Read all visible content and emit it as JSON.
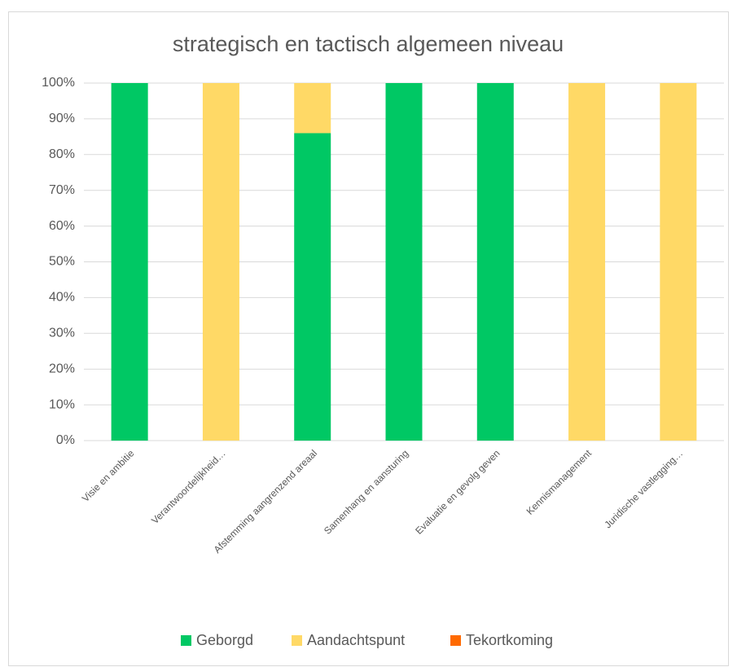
{
  "chart_data": {
    "type": "stacked_bar",
    "title": "strategisch en tactisch algemeen niveau",
    "categories": [
      "Visie en ambitie",
      "Verantwoordelijkheid…",
      "Afstemming aangrenzend areaal",
      "Samenhang en aansturing",
      "Evaluatie en gevolg geven",
      "Kennismanagement",
      "Juridische vastlegging…"
    ],
    "series": [
      {
        "name": "Geborgd",
        "color": "#00C864",
        "values": [
          100,
          0,
          86,
          100,
          100,
          0,
          0
        ]
      },
      {
        "name": "Aandachtspunt",
        "color": "#FFD966",
        "values": [
          0,
          100,
          14,
          0,
          0,
          100,
          100
        ]
      },
      {
        "name": "Tekortkoming",
        "color": "#FF6A00",
        "values": [
          0,
          0,
          0,
          0,
          0,
          0,
          0
        ]
      }
    ],
    "ylim": [
      0,
      100
    ],
    "yticks": [
      {
        "value": 0,
        "label": "0%"
      },
      {
        "value": 10,
        "label": "10%"
      },
      {
        "value": 20,
        "label": "20%"
      },
      {
        "value": 30,
        "label": "30%"
      },
      {
        "value": 40,
        "label": "40%"
      },
      {
        "value": 50,
        "label": "50%"
      },
      {
        "value": 60,
        "label": "60%"
      },
      {
        "value": 70,
        "label": "70%"
      },
      {
        "value": 80,
        "label": "80%"
      },
      {
        "value": 90,
        "label": "90%"
      },
      {
        "value": 100,
        "label": "100%"
      }
    ],
    "grid": true,
    "legend": "bottom"
  }
}
